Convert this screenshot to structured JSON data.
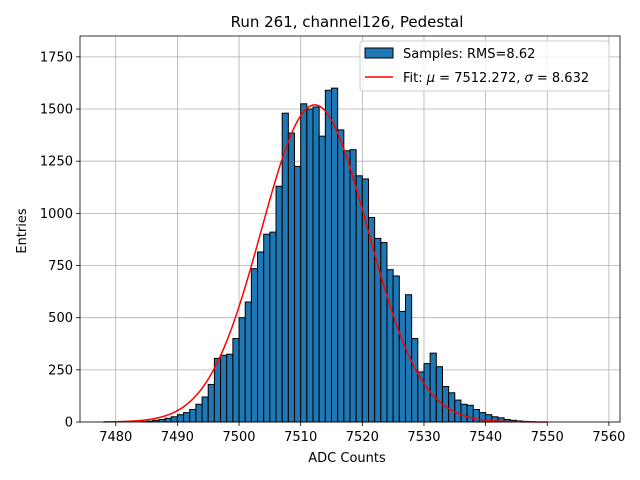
{
  "chart_data": {
    "type": "bar",
    "title": "Run 261, channel126, Pedestal",
    "xlabel": "ADC Counts",
    "ylabel": "Entries",
    "xlim": [
      7474.2,
      7561.8
    ],
    "ylim": [
      0,
      1850
    ],
    "x_ticks": [
      7480,
      7490,
      7500,
      7510,
      7520,
      7530,
      7540,
      7550,
      7560
    ],
    "x_tick_labels": [
      "7480",
      "7490",
      "7500",
      "7510",
      "7520",
      "7530",
      "7540",
      "7550",
      "7560"
    ],
    "y_ticks": [
      0,
      250,
      500,
      750,
      1000,
      1250,
      1500,
      1750
    ],
    "y_tick_labels": [
      "0",
      "250",
      "500",
      "750",
      "1000",
      "1250",
      "1500",
      "1750"
    ],
    "grid": true,
    "legend_position": "top-right",
    "bin_width": 1,
    "bin_edges_start": 7484,
    "series": [
      {
        "name": "Samples: RMS=8.62",
        "kind": "histogram",
        "color": "#1f77b4",
        "edgecolor": "#000000",
        "values": [
          2,
          4,
          8,
          12,
          18,
          25,
          35,
          45,
          60,
          85,
          120,
          180,
          305,
          320,
          325,
          400,
          500,
          575,
          735,
          815,
          900,
          910,
          1130,
          1480,
          1385,
          1225,
          1525,
          1500,
          1510,
          1370,
          1590,
          1600,
          1400,
          1300,
          1305,
          1180,
          1165,
          980,
          880,
          860,
          730,
          700,
          530,
          610,
          400,
          240,
          280,
          330,
          265,
          170,
          140,
          105,
          85,
          80,
          60,
          45,
          35,
          25,
          20,
          12,
          8,
          5,
          3,
          2
        ]
      },
      {
        "name": "Fit: μ = 7512.272, σ = 8.632",
        "legend_label": {
          "prefix": "Fit: ",
          "mu_symbol": "μ",
          "mu_value": " = 7512.272, ",
          "sigma_symbol": "σ",
          "sigma_value": " = 8.632"
        },
        "kind": "gaussian_fit",
        "color": "#ff0000",
        "mu": 7512.272,
        "sigma": 8.632,
        "amplitude": 1520,
        "x_range": [
          7478,
          7550
        ]
      }
    ]
  }
}
